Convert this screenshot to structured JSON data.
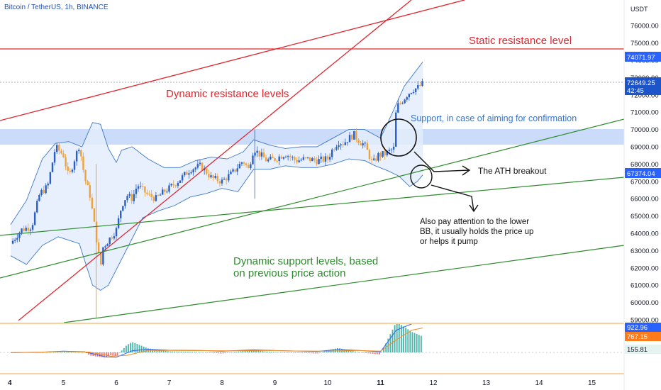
{
  "header": {
    "symbol": "Bitcoin / TetherUS, 1h, BINANCE",
    "currency": "USDT"
  },
  "annotations": {
    "static_resistance": "Static resistance level",
    "dynamic_resistance": "Dynamic resistance levels",
    "support_confirmation": "Support, in case of aiming for confirmation",
    "ath_breakout": "The ATH breakout",
    "lower_bb_note": [
      "Also pay attention to the lower",
      "BB, it usually holds the price up",
      "or helps it pump"
    ],
    "dynamic_support": [
      "Dynamic support levels, based",
      "on previous price action"
    ]
  },
  "price_badges": {
    "resistance": "74071.97",
    "last_price": "72649.25",
    "countdown": "42:45",
    "lower_band": "67374.04"
  },
  "macd_badges": [
    "922.96",
    "767.15",
    "155.81"
  ],
  "colors": {
    "up": "#26a69a",
    "down": "#ef5350",
    "resistance": "#e0262f",
    "support": "#2e8b2e",
    "band": "#3f78c9",
    "zone": "#b8d0f7",
    "badge_blue": "#2962ff",
    "badge_orange": "#ff7a1a",
    "macd_signal": "#f28b20"
  },
  "chart_data": {
    "type": "candlestick",
    "y_ticks": [
      59000,
      60000,
      61000,
      62000,
      63000,
      64000,
      65000,
      66000,
      67000,
      68000,
      69000,
      70000,
      71000,
      72000,
      73000,
      74000,
      75000,
      76000
    ],
    "y_tick_labels": [
      "59000.00",
      "60000.00",
      "61000.00",
      "62000.00",
      "63000.00",
      "64000.00",
      "65000.00",
      "66000.00",
      "67000.00",
      "68000.00",
      "69000.00",
      "70000.00",
      "71000.00",
      "72000.00",
      "73000.00",
      "74000.00",
      "75000.00",
      "76000.00"
    ],
    "x_ticks": [
      "4",
      "5",
      "6",
      "7",
      "8",
      "9",
      "10",
      "11",
      "12",
      "13",
      "14",
      "15"
    ],
    "ylim": [
      58750,
      76900
    ],
    "price_path": [
      [
        4.0,
        63400
      ],
      [
        4.2,
        64200
      ],
      [
        4.4,
        64400
      ],
      [
        4.55,
        66300
      ],
      [
        4.7,
        66700
      ],
      [
        4.85,
        69000
      ],
      [
        5.0,
        68500
      ],
      [
        5.1,
        67200
      ],
      [
        5.2,
        68200
      ],
      [
        5.3,
        69100
      ],
      [
        5.4,
        67200
      ],
      [
        5.5,
        66200
      ],
      [
        5.6,
        64200
      ],
      [
        5.7,
        62000
      ],
      [
        5.75,
        63200
      ],
      [
        5.85,
        63600
      ],
      [
        6.0,
        64200
      ],
      [
        6.1,
        65600
      ],
      [
        6.2,
        66200
      ],
      [
        6.3,
        66000
      ],
      [
        6.4,
        66800
      ],
      [
        6.5,
        66500
      ],
      [
        6.6,
        66200
      ],
      [
        6.75,
        66000
      ],
      [
        6.9,
        66400
      ],
      [
        7.0,
        66600
      ],
      [
        7.2,
        67100
      ],
      [
        7.4,
        67700
      ],
      [
        7.6,
        67900
      ],
      [
        7.8,
        67200
      ],
      [
        8.0,
        67000
      ],
      [
        8.2,
        67500
      ],
      [
        8.4,
        68200
      ],
      [
        8.5,
        67700
      ],
      [
        8.6,
        68900
      ],
      [
        8.7,
        68600
      ],
      [
        8.85,
        68200
      ],
      [
        9.0,
        68300
      ],
      [
        9.2,
        68600
      ],
      [
        9.4,
        68200
      ],
      [
        9.6,
        68300
      ],
      [
        9.8,
        68200
      ],
      [
        10.0,
        68300
      ],
      [
        10.1,
        68900
      ],
      [
        10.2,
        69300
      ],
      [
        10.3,
        69200
      ],
      [
        10.4,
        69500
      ],
      [
        10.5,
        69700
      ],
      [
        10.6,
        69300
      ],
      [
        10.7,
        69100
      ],
      [
        10.8,
        68400
      ],
      [
        10.85,
        68000
      ],
      [
        10.95,
        68500
      ],
      [
        11.1,
        68600
      ],
      [
        11.25,
        68900
      ],
      [
        11.3,
        71300
      ],
      [
        11.4,
        71600
      ],
      [
        11.5,
        72000
      ],
      [
        11.6,
        72300
      ],
      [
        11.7,
        72400
      ],
      [
        11.8,
        72650
      ]
    ],
    "bollinger_upper": [
      [
        4.0,
        64500
      ],
      [
        4.3,
        65900
      ],
      [
        4.6,
        68300
      ],
      [
        4.85,
        69200
      ],
      [
        5.1,
        69300
      ],
      [
        5.35,
        69000
      ],
      [
        5.55,
        70400
      ],
      [
        5.7,
        70300
      ],
      [
        5.85,
        68900
      ],
      [
        6.0,
        68100
      ],
      [
        6.1,
        68800
      ],
      [
        6.3,
        69000
      ],
      [
        6.6,
        68300
      ],
      [
        6.9,
        67800
      ],
      [
        7.2,
        67800
      ],
      [
        7.5,
        68200
      ],
      [
        7.8,
        68400
      ],
      [
        8.1,
        68300
      ],
      [
        8.4,
        68700
      ],
      [
        8.6,
        69400
      ],
      [
        8.9,
        69100
      ],
      [
        9.2,
        68900
      ],
      [
        9.5,
        69000
      ],
      [
        9.8,
        69000
      ],
      [
        10.1,
        69500
      ],
      [
        10.4,
        70000
      ],
      [
        10.7,
        70000
      ],
      [
        11.0,
        69500
      ],
      [
        11.2,
        70800
      ],
      [
        11.45,
        72500
      ],
      [
        11.7,
        73500
      ],
      [
        11.8,
        73900
      ]
    ],
    "bollinger_lower": [
      [
        4.0,
        62700
      ],
      [
        4.3,
        62200
      ],
      [
        4.6,
        63300
      ],
      [
        4.9,
        63800
      ],
      [
        5.3,
        63400
      ],
      [
        5.55,
        61000
      ],
      [
        5.7,
        60700
      ],
      [
        5.85,
        61000
      ],
      [
        6.0,
        61900
      ],
      [
        6.2,
        63100
      ],
      [
        6.5,
        64900
      ],
      [
        6.8,
        65300
      ],
      [
        7.1,
        65600
      ],
      [
        7.4,
        66100
      ],
      [
        7.7,
        66300
      ],
      [
        8.0,
        66600
      ],
      [
        8.3,
        66400
      ],
      [
        8.6,
        67700
      ],
      [
        8.9,
        67700
      ],
      [
        9.2,
        67900
      ],
      [
        9.5,
        67800
      ],
      [
        9.8,
        67800
      ],
      [
        10.1,
        68000
      ],
      [
        10.4,
        68300
      ],
      [
        10.7,
        68200
      ],
      [
        10.9,
        67900
      ],
      [
        11.15,
        67600
      ],
      [
        11.35,
        67300
      ],
      [
        11.55,
        66700
      ],
      [
        11.7,
        67000
      ],
      [
        11.8,
        67374
      ]
    ],
    "levels": {
      "static_resistance": 74071.97,
      "lower_band": 67374.04,
      "last_price": 72649.25
    },
    "macd_line": [
      [
        4.0,
        -8
      ],
      [
        4.6,
        10
      ],
      [
        5.0,
        40
      ],
      [
        5.4,
        20
      ],
      [
        5.8,
        -140
      ],
      [
        6.0,
        -150
      ],
      [
        6.3,
        50
      ],
      [
        6.6,
        100
      ],
      [
        7.0,
        70
      ],
      [
        7.6,
        60
      ],
      [
        8.0,
        40
      ],
      [
        8.6,
        80
      ],
      [
        9.2,
        50
      ],
      [
        9.8,
        30
      ],
      [
        10.2,
        90
      ],
      [
        10.6,
        60
      ],
      [
        11.0,
        20
      ],
      [
        11.3,
        700
      ],
      [
        11.6,
        900
      ],
      [
        11.8,
        922.96
      ]
    ],
    "signal_line": [
      [
        4.0,
        -6
      ],
      [
        4.6,
        8
      ],
      [
        5.0,
        30
      ],
      [
        5.5,
        10
      ],
      [
        5.9,
        -120
      ],
      [
        6.2,
        -90
      ],
      [
        6.6,
        60
      ],
      [
        7.0,
        60
      ],
      [
        7.6,
        55
      ],
      [
        8.2,
        50
      ],
      [
        8.8,
        60
      ],
      [
        9.4,
        45
      ],
      [
        10.0,
        40
      ],
      [
        10.6,
        60
      ],
      [
        11.0,
        40
      ],
      [
        11.3,
        400
      ],
      [
        11.6,
        700
      ],
      [
        11.8,
        767.15
      ]
    ],
    "histogram_last": 155.81
  }
}
